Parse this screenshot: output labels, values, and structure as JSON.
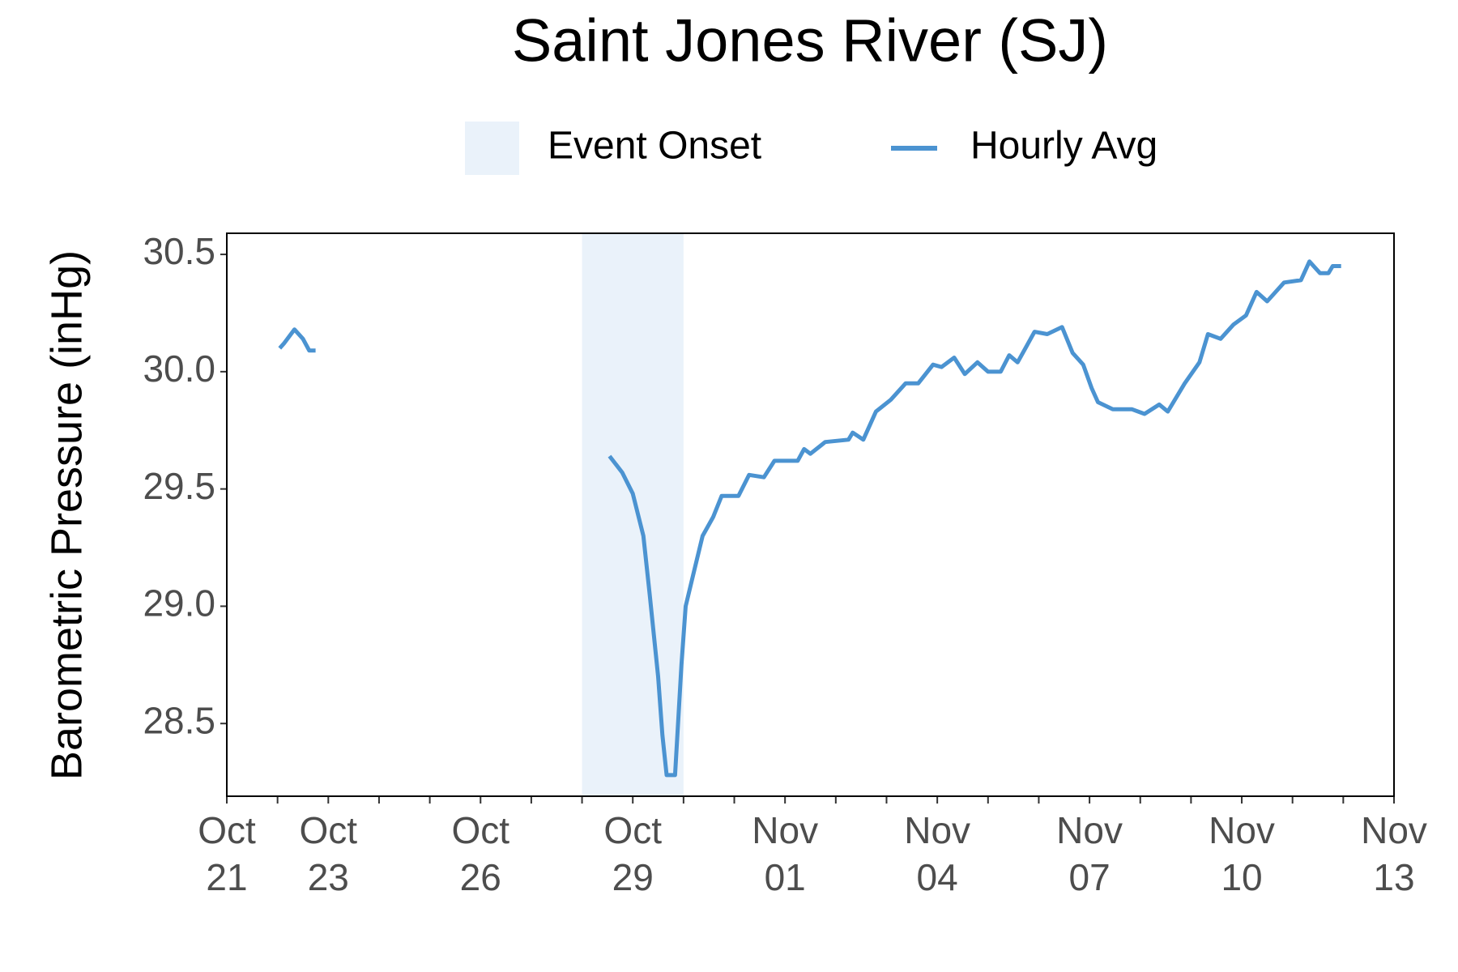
{
  "chart_data": {
    "type": "line",
    "title": "Saint Jones River (SJ)",
    "y_label": "Barometric Pressure (inHg)",
    "legend": "top",
    "x": [
      "10-22 01:00",
      "10-22 03:00",
      "10-22 08:00",
      "10-22 12:00",
      "10-22 15:00",
      "10-22 18:00",
      "10-25 00:00",
      "10-28 13:00",
      "10-28 19:00",
      "10-29 00:00",
      "10-29 05:00",
      "10-29 08:00",
      "10-29 12:00",
      "10-29 14:00",
      "10-29 16:00",
      "10-29 20:00",
      "10-29 23:00",
      "10-30 01:00",
      "10-30 05:00",
      "10-30 09:00",
      "10-30 14:00",
      "10-30 18:00",
      "10-31 02:00",
      "10-31 07:00",
      "10-31 14:00",
      "10-31 19:00",
      "11-01 06:00",
      "11-01 09:00",
      "11-01 12:00",
      "11-01 19:00",
      "11-02 06:00",
      "11-02 08:00",
      "11-02 13:00",
      "11-02 19:00",
      "11-03 02:00",
      "11-03 09:00",
      "11-03 15:00",
      "11-03 22:00",
      "11-04 02:00",
      "11-04 08:00",
      "11-04 13:00",
      "11-04 19:00",
      "11-05 00:00",
      "11-05 06:00",
      "11-05 10:00",
      "11-05 14:00",
      "11-05 22:00",
      "11-06 04:00",
      "11-06 11:00",
      "11-06 16:00",
      "11-06 21:00",
      "11-07 01:00",
      "11-07 04:00",
      "11-07 11:00",
      "11-07 20:00",
      "11-08 02:00",
      "11-08 09:00",
      "11-08 13:00",
      "11-08 21:00",
      "11-09 04:00",
      "11-09 08:00",
      "11-09 14:00",
      "11-09 20:00",
      "11-10 02:00",
      "11-10 07:00",
      "11-10 12:00",
      "11-10 20:00",
      "11-11 04:00",
      "11-11 08:00",
      "11-11 13:00",
      "11-11 17:00",
      "11-11 19:00",
      "11-11 23:00"
    ],
    "series": [
      {
        "name": "Hourly Avg",
        "color": "#4b93d1",
        "values": [
          30.1,
          30.12,
          30.18,
          30.14,
          30.09,
          30.09,
          null,
          29.64,
          29.57,
          29.48,
          29.3,
          29.05,
          28.7,
          28.45,
          28.28,
          28.28,
          28.75,
          29.0,
          29.15,
          29.3,
          29.38,
          29.47,
          29.47,
          29.56,
          29.55,
          29.62,
          29.62,
          29.67,
          29.65,
          29.7,
          29.71,
          29.74,
          29.71,
          29.83,
          29.88,
          29.95,
          29.95,
          30.03,
          30.02,
          30.06,
          29.99,
          30.04,
          30.0,
          30.0,
          30.07,
          30.04,
          30.17,
          30.16,
          30.19,
          30.08,
          30.03,
          29.93,
          29.87,
          29.84,
          29.84,
          29.82,
          29.86,
          29.83,
          29.95,
          30.04,
          30.16,
          30.14,
          30.2,
          30.24,
          30.34,
          30.3,
          30.38,
          30.39,
          30.47,
          30.42,
          30.42,
          30.45,
          30.45
        ]
      }
    ],
    "bands": [
      {
        "name": "Event Onset",
        "color": "#eaf2fa",
        "x": [
          "10-28 00:00",
          "10-30 00:00"
        ]
      }
    ],
    "xlim": [
      "10-21 00:00",
      "11-13 00:00"
    ],
    "xticks": [
      {
        "value": "10-21 00:00",
        "label": "Oct 21"
      },
      {
        "value": "10-23 00:00",
        "label": "Oct 23"
      },
      {
        "value": "10-26 00:00",
        "label": "Oct 26"
      },
      {
        "value": "10-29 00:00",
        "label": "Oct 29"
      },
      {
        "value": "11-01 00:00",
        "label": "Nov 01"
      },
      {
        "value": "11-04 00:00",
        "label": "Nov 04"
      },
      {
        "value": "11-07 00:00",
        "label": "Nov 07"
      },
      {
        "value": "11-10 00:00",
        "label": "Nov 10"
      },
      {
        "value": "11-13 00:00",
        "label": "Nov 13"
      }
    ],
    "xticks_minor": [
      "10-22 00:00",
      "10-24 00:00",
      "10-25 00:00",
      "10-27 00:00",
      "10-28 00:00",
      "10-30 00:00",
      "10-31 00:00",
      "11-02 00:00",
      "11-03 00:00",
      "11-05 00:00",
      "11-06 00:00",
      "11-08 00:00",
      "11-09 00:00",
      "11-11 00:00",
      "11-12 00:00"
    ],
    "ylim": [
      28.19,
      30.59
    ],
    "yticks": [
      28.5,
      {
        "value": 29,
        "label": "29.0"
      },
      29.5,
      {
        "value": 30,
        "label": "30.0"
      },
      30.5
    ]
  }
}
